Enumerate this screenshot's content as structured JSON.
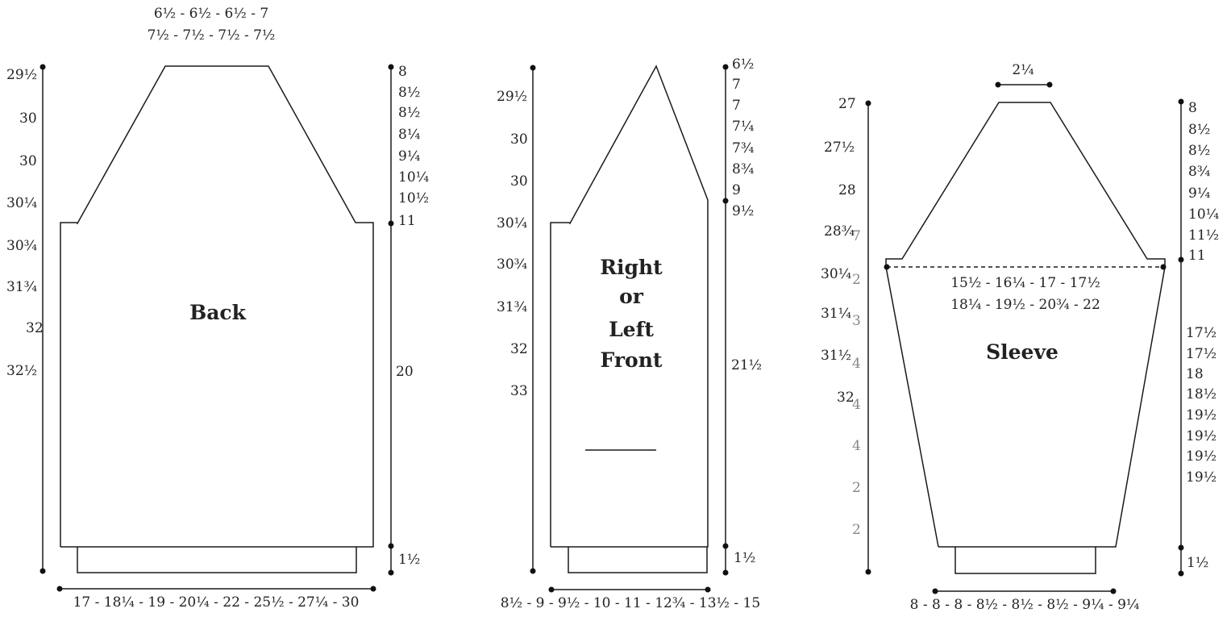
{
  "back": {
    "title": "Back",
    "top_width": [
      "6½ - 6½ - 6½ - 7",
      "7½ - 7½ - 7½ - 7½"
    ],
    "left_lengths": [
      "29½",
      "30",
      "30",
      "30¼",
      "30¾",
      "31¾",
      "32",
      "32½"
    ],
    "armhole_depths": [
      "8",
      "8½",
      "8½",
      "8¼",
      "9¼",
      "10¼",
      "10½",
      "11"
    ],
    "side_length": "20",
    "hem": "1½",
    "bottom_width": "17 - 18¼ - 19 - 20¼ - 22 - 25½ - 27¼ - 30"
  },
  "front": {
    "title_lines": [
      "Right",
      "or",
      "Left",
      "Front"
    ],
    "left_lengths": [
      "29½",
      "30",
      "30",
      "30¼",
      "30¾",
      "31¾",
      "32",
      "33"
    ],
    "neck_depths": [
      "6½",
      "7",
      "7",
      "7¼",
      "7¾",
      "8¾",
      "9",
      "9½"
    ],
    "side_length": "21½",
    "hem": "1½",
    "bottom_width": "8½ - 9 - 9½ - 10 - 11 - 12¾ - 13½ - 15"
  },
  "sleeve": {
    "title": "Sleeve",
    "top_width": "2¼",
    "left_lengths": [
      "27",
      "27½",
      "28",
      "28¾",
      "30¼",
      "31¼",
      "31½",
      "32"
    ],
    "left_stray": [
      "7",
      "2",
      "3",
      "4",
      "4",
      "4",
      "2",
      "2"
    ],
    "cap_depths": [
      "8",
      "8½",
      "8½",
      "8¾",
      "9¼",
      "10¼",
      "11½",
      "11"
    ],
    "upper_width": [
      "15½ - 16¼ - 17 - 17½",
      "18¼ - 19½ - 20¾ - 22"
    ],
    "underarm_lengths": [
      "17½",
      "17½",
      "18",
      "18½",
      "19½",
      "19½",
      "19½",
      "19½"
    ],
    "hem": "1½",
    "bottom_width": "8 - 8 - 8 - 8½ - 8½ - 8½ - 9¼ - 9¼"
  }
}
